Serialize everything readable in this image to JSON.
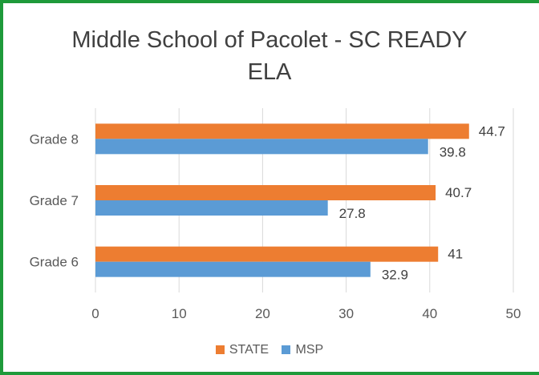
{
  "chart_data": {
    "type": "bar",
    "orientation": "horizontal",
    "title_lines": [
      "Middle School of Pacolet - SC READY",
      "ELA"
    ],
    "categories": [
      "Grade 8",
      "Grade 7",
      "Grade 6"
    ],
    "series": [
      {
        "name": "STATE",
        "color": "#ed7d31",
        "values": [
          44.7,
          40.7,
          41
        ]
      },
      {
        "name": "MSP",
        "color": "#5b9bd5",
        "values": [
          39.8,
          27.8,
          32.9
        ]
      }
    ],
    "xlim": [
      0,
      50
    ],
    "xticks": [
      0,
      10,
      20,
      30,
      40,
      50
    ],
    "grid": true,
    "legend_position": "bottom"
  }
}
